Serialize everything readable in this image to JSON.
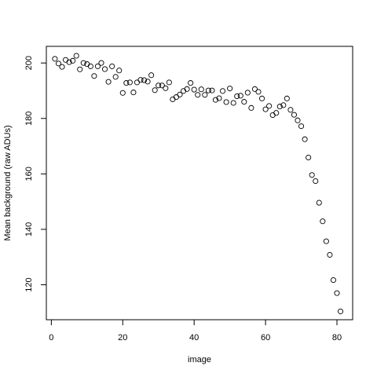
{
  "chart_data": {
    "type": "scatter",
    "title": "",
    "xlabel": "image",
    "ylabel": "Mean background (raw ADUs)",
    "xlim": [
      -1.4,
      84.4
    ],
    "ylim": [
      107.4,
      206.0
    ],
    "xticks": [
      0,
      20,
      40,
      60,
      80
    ],
    "xtick_labels": [
      "0",
      "20",
      "40",
      "60",
      "80"
    ],
    "yticks": [
      120,
      140,
      160,
      180,
      200
    ],
    "ytick_labels": [
      "120",
      "140",
      "160",
      "180",
      "200"
    ],
    "grid": false,
    "legend": "none",
    "marker": "open-circle",
    "colors": {
      "marker": "#000000",
      "axis": "#000000",
      "background": "#ffffff"
    },
    "x": [
      1,
      2,
      3,
      4,
      5,
      6,
      7,
      8,
      9,
      10,
      11,
      12,
      13,
      14,
      15,
      16,
      17,
      18,
      19,
      20,
      21,
      22,
      23,
      24,
      25,
      26,
      27,
      28,
      29,
      30,
      31,
      32,
      33,
      34,
      35,
      36,
      37,
      38,
      39,
      40,
      41,
      42,
      43,
      44,
      45,
      46,
      47,
      48,
      49,
      50,
      51,
      52,
      53,
      54,
      55,
      56,
      57,
      58,
      59,
      60,
      61,
      62,
      63,
      64,
      65,
      66,
      67,
      68,
      69,
      70,
      71,
      72,
      73,
      74,
      75,
      76,
      77,
      78,
      79,
      80,
      81
    ],
    "y": [
      201.5,
      199.8,
      198.6,
      201.1,
      200.3,
      200.8,
      202.6,
      197.7,
      200.0,
      199.6,
      198.8,
      195.3,
      198.8,
      200.0,
      197.8,
      193.2,
      198.8,
      195.0,
      197.3,
      189.2,
      192.8,
      193.0,
      189.4,
      193.0,
      193.9,
      193.8,
      193.3,
      195.6,
      190.2,
      191.9,
      191.9,
      190.9,
      193.0,
      186.9,
      187.7,
      188.6,
      189.9,
      190.6,
      192.8,
      190.4,
      188.5,
      190.5,
      188.5,
      190.1,
      190.1,
      186.7,
      187.3,
      189.9,
      185.9,
      190.8,
      185.6,
      188.0,
      188.2,
      186.0,
      189.3,
      183.8,
      190.6,
      189.6,
      187.2,
      183.3,
      184.5,
      181.2,
      182.0,
      184.3,
      184.8,
      187.2,
      183.1,
      181.3,
      179.3,
      177.2,
      172.5,
      165.9,
      159.6,
      157.4,
      149.6,
      142.9,
      135.7,
      130.8,
      121.7,
      117.0,
      110.4
    ]
  }
}
